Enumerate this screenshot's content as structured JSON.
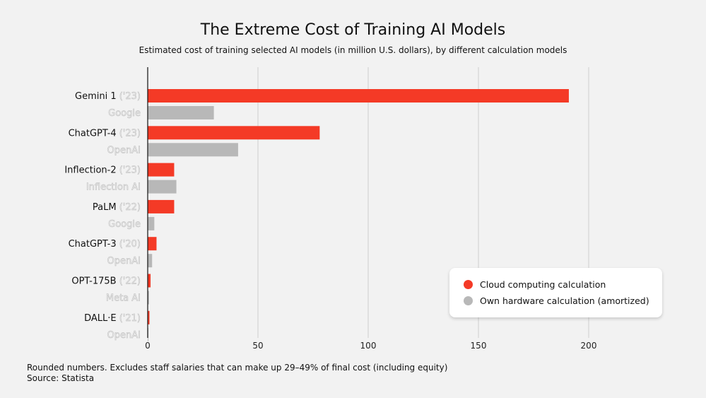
{
  "chart_data": {
    "type": "bar",
    "orientation": "horizontal",
    "title": "The Extreme Cost of Training AI Models",
    "subtitle": "Estimated cost of training selected AI models (in million U.S. dollars), by different calculation models",
    "categories": [
      {
        "model": "Gemini 1",
        "year": "('23)",
        "company": "Google"
      },
      {
        "model": "ChatGPT-4",
        "year": "('23)",
        "company": "OpenAI"
      },
      {
        "model": "Inflection-2",
        "year": "('23)",
        "company": "Inflection AI"
      },
      {
        "model": "PaLM",
        "year": "('22)",
        "company": "Google"
      },
      {
        "model": "ChatGPT-3",
        "year": "('20)",
        "company": "OpenAI"
      },
      {
        "model": "OPT-175B",
        "year": "('22)",
        "company": "Meta AI"
      },
      {
        "model": "DALL·E",
        "year": "('21)",
        "company": "OpenAI"
      }
    ],
    "series": [
      {
        "name": "Cloud computing calculation",
        "color": "#f43a26",
        "values": [
          191,
          78,
          12,
          12,
          4,
          1.3,
          0.8
        ]
      },
      {
        "name": "Own hardware calculation (amortized)",
        "color": "#b8b8b8",
        "values": [
          30,
          41,
          13,
          3,
          2,
          0.6,
          0.1
        ]
      }
    ],
    "xlim": [
      0,
      200
    ],
    "xticks": [
      "0",
      "50",
      "100",
      "150",
      "200"
    ],
    "xlabel": "",
    "ylabel": "",
    "grid": "vertical",
    "legend_position": "bottom-right"
  },
  "footnote": "Rounded numbers. Excludes staff salaries that can make up 29–49% of final cost (including equity)",
  "source": "Source: Statista"
}
